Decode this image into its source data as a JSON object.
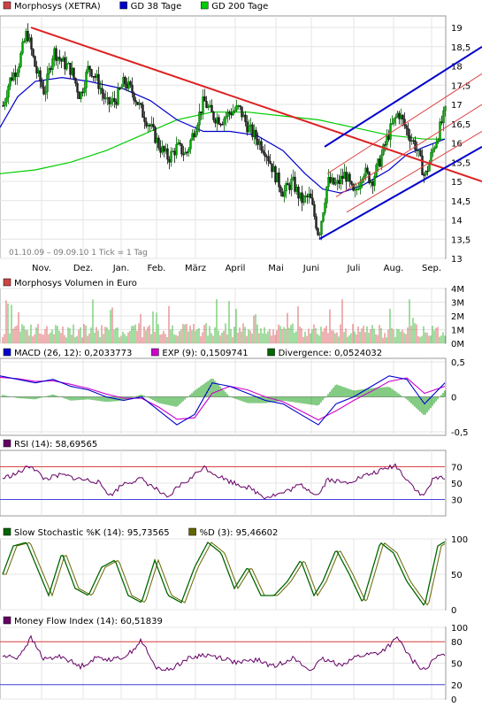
{
  "chart_data": [
    {
      "type": "candlestick",
      "legend": [
        {
          "name": "Morphosys (XETRA)",
          "color": "#cc4444"
        },
        {
          "name": "GD 38 Tage",
          "color": "#0000cc"
        },
        {
          "name": "GD 200 Tage",
          "color": "#00cc00"
        }
      ],
      "range_label": "01.10.09 – 09.09.10   1 Tick = 1 Tag",
      "months": [
        "Nov.",
        "Dez.",
        "Jan.",
        "Feb.",
        "März",
        "April",
        "Mai",
        "Juni",
        "Juli",
        "Aug.",
        "Sep."
      ],
      "yticks": [
        "19",
        "18,5",
        "18",
        "17,5",
        "17",
        "16,5",
        "16",
        "15,5",
        "15",
        "14,5",
        "14",
        "13,5",
        "13"
      ],
      "ylim": [
        13,
        19.3
      ],
      "price_points": [
        [
          0,
          16.7
        ],
        [
          10,
          17.6
        ],
        [
          20,
          18.0
        ],
        [
          30,
          18.9
        ],
        [
          40,
          17.9
        ],
        [
          50,
          17.3
        ],
        [
          60,
          18.4
        ],
        [
          70,
          18.1
        ],
        [
          80,
          17.9
        ],
        [
          90,
          17.2
        ],
        [
          100,
          18.0
        ],
        [
          110,
          17.6
        ],
        [
          120,
          17.0
        ],
        [
          130,
          17.1
        ],
        [
          140,
          17.6
        ],
        [
          150,
          17.3
        ],
        [
          160,
          16.8
        ],
        [
          170,
          16.4
        ],
        [
          180,
          15.9
        ],
        [
          190,
          15.6
        ],
        [
          200,
          15.9
        ],
        [
          210,
          15.7
        ],
        [
          220,
          16.4
        ],
        [
          230,
          17.1
        ],
        [
          240,
          16.7
        ],
        [
          250,
          16.6
        ],
        [
          260,
          16.8
        ],
        [
          270,
          16.9
        ],
        [
          280,
          16.4
        ],
        [
          290,
          16.1
        ],
        [
          300,
          15.8
        ],
        [
          310,
          15.2
        ],
        [
          320,
          14.7
        ],
        [
          330,
          15.0
        ],
        [
          340,
          14.5
        ],
        [
          350,
          14.6
        ],
        [
          360,
          13.6
        ],
        [
          370,
          15.0
        ],
        [
          380,
          14.9
        ],
        [
          390,
          15.2
        ],
        [
          400,
          14.6
        ],
        [
          410,
          15.3
        ],
        [
          420,
          15.0
        ],
        [
          430,
          15.6
        ],
        [
          440,
          16.3
        ],
        [
          450,
          16.8
        ],
        [
          460,
          16.3
        ],
        [
          470,
          15.9
        ],
        [
          480,
          15.1
        ],
        [
          490,
          15.9
        ],
        [
          500,
          16.6
        ],
        [
          503,
          16.8
        ]
      ],
      "ma38_points": [
        [
          0,
          16.4
        ],
        [
          20,
          17.2
        ],
        [
          40,
          17.6
        ],
        [
          70,
          17.7
        ],
        [
          100,
          17.6
        ],
        [
          140,
          17.4
        ],
        [
          170,
          17.1
        ],
        [
          200,
          16.6
        ],
        [
          230,
          16.3
        ],
        [
          260,
          16.3
        ],
        [
          290,
          16.2
        ],
        [
          320,
          15.8
        ],
        [
          345,
          15.2
        ],
        [
          365,
          14.8
        ],
        [
          385,
          14.7
        ],
        [
          410,
          14.9
        ],
        [
          440,
          15.3
        ],
        [
          460,
          15.7
        ],
        [
          480,
          15.9
        ],
        [
          503,
          16.1
        ]
      ],
      "ma200_points": [
        [
          0,
          15.2
        ],
        [
          40,
          15.3
        ],
        [
          80,
          15.5
        ],
        [
          120,
          15.8
        ],
        [
          160,
          16.2
        ],
        [
          200,
          16.6
        ],
        [
          240,
          16.8
        ],
        [
          280,
          16.8
        ],
        [
          320,
          16.7
        ],
        [
          360,
          16.6
        ],
        [
          400,
          16.4
        ],
        [
          440,
          16.2
        ],
        [
          480,
          16.1
        ],
        [
          503,
          16.1
        ]
      ],
      "trendlines": [
        {
          "color": "#dd2222",
          "width": 2,
          "from": [
            35,
            19.0
          ],
          "to": [
            545,
            15.0
          ]
        },
        {
          "color": "#0000cc",
          "width": 2,
          "from": [
            367,
            15.9
          ],
          "to": [
            545,
            18.5
          ]
        },
        {
          "color": "#0000cc",
          "width": 2,
          "from": [
            361,
            13.5
          ],
          "to": [
            545,
            15.9
          ]
        },
        {
          "color": "#dd4444",
          "width": 1,
          "from": [
            370,
            15.2
          ],
          "to": [
            545,
            17.8
          ]
        },
        {
          "color": "#dd4444",
          "width": 1,
          "from": [
            380,
            14.6
          ],
          "to": [
            545,
            17.0
          ]
        },
        {
          "color": "#dd4444",
          "width": 1,
          "from": [
            392,
            14.2
          ],
          "to": [
            545,
            16.3
          ]
        }
      ]
    },
    {
      "type": "bar",
      "legend": [
        {
          "name": "Morphosys Volumen in Euro",
          "color": "#cc4444"
        }
      ],
      "yticks": [
        "4M",
        "3M",
        "2M",
        "1M",
        "0M"
      ],
      "ylim": [
        0,
        4
      ]
    },
    {
      "type": "line",
      "legend": [
        {
          "name": "MACD (26, 12): 0,2033773",
          "color": "#0000cc"
        },
        {
          "name": "EXP (9): 0,1509741",
          "color": "#cc00cc"
        },
        {
          "name": "Divergence: 0,0524032",
          "color": "#006600"
        }
      ],
      "yticks": [
        "0,5",
        "0",
        "-0,5"
      ],
      "ylim": [
        -0.55,
        0.55
      ],
      "macd_points": [
        [
          0,
          0.3
        ],
        [
          20,
          0.25
        ],
        [
          40,
          0.2
        ],
        [
          60,
          0.25
        ],
        [
          80,
          0.15
        ],
        [
          100,
          0.1
        ],
        [
          120,
          0.0
        ],
        [
          140,
          -0.05
        ],
        [
          160,
          0.0
        ],
        [
          180,
          -0.2
        ],
        [
          200,
          -0.4
        ],
        [
          220,
          -0.25
        ],
        [
          240,
          0.2
        ],
        [
          260,
          0.15
        ],
        [
          280,
          0.05
        ],
        [
          300,
          -0.05
        ],
        [
          320,
          -0.1
        ],
        [
          340,
          -0.25
        ],
        [
          360,
          -0.4
        ],
        [
          380,
          -0.1
        ],
        [
          400,
          0.0
        ],
        [
          420,
          0.15
        ],
        [
          440,
          0.3
        ],
        [
          460,
          0.25
        ],
        [
          480,
          -0.1
        ],
        [
          503,
          0.2
        ]
      ],
      "exp_points": [
        [
          0,
          0.28
        ],
        [
          20,
          0.26
        ],
        [
          40,
          0.22
        ],
        [
          60,
          0.23
        ],
        [
          80,
          0.18
        ],
        [
          100,
          0.12
        ],
        [
          120,
          0.04
        ],
        [
          140,
          -0.02
        ],
        [
          160,
          -0.02
        ],
        [
          180,
          -0.15
        ],
        [
          200,
          -0.32
        ],
        [
          220,
          -0.3
        ],
        [
          240,
          0.05
        ],
        [
          260,
          0.15
        ],
        [
          280,
          0.1
        ],
        [
          300,
          0.0
        ],
        [
          320,
          -0.07
        ],
        [
          340,
          -0.2
        ],
        [
          360,
          -0.33
        ],
        [
          380,
          -0.2
        ],
        [
          400,
          -0.05
        ],
        [
          420,
          0.08
        ],
        [
          440,
          0.22
        ],
        [
          460,
          0.27
        ],
        [
          480,
          0.05
        ],
        [
          503,
          0.15
        ]
      ]
    },
    {
      "type": "line",
      "legend": [
        {
          "name": "RSI (14): 58,69565",
          "color": "#660066"
        }
      ],
      "yticks": [
        "70",
        "50",
        "30"
      ],
      "ylim": [
        10,
        90
      ],
      "ref_lines": [
        {
          "value": 70,
          "color": "#dd4444"
        },
        {
          "value": 30,
          "color": "#4444dd"
        }
      ],
      "points": [
        [
          0,
          55
        ],
        [
          20,
          62
        ],
        [
          35,
          72
        ],
        [
          50,
          55
        ],
        [
          70,
          60
        ],
        [
          90,
          55
        ],
        [
          110,
          52
        ],
        [
          125,
          35
        ],
        [
          140,
          50
        ],
        [
          160,
          55
        ],
        [
          180,
          40
        ],
        [
          190,
          30
        ],
        [
          200,
          45
        ],
        [
          215,
          55
        ],
        [
          230,
          70
        ],
        [
          245,
          60
        ],
        [
          260,
          52
        ],
        [
          280,
          45
        ],
        [
          300,
          33
        ],
        [
          320,
          38
        ],
        [
          340,
          48
        ],
        [
          360,
          35
        ],
        [
          370,
          55
        ],
        [
          390,
          50
        ],
        [
          410,
          58
        ],
        [
          430,
          65
        ],
        [
          447,
          72
        ],
        [
          460,
          55
        ],
        [
          478,
          33
        ],
        [
          490,
          55
        ],
        [
          503,
          58
        ]
      ]
    },
    {
      "type": "line",
      "legend": [
        {
          "name": "Slow Stochastic %K (14): 95,73565",
          "color": "#006600"
        },
        {
          "name": "%D (3): 95,46602",
          "color": "#666600"
        }
      ],
      "yticks": [
        "100",
        "50",
        "0"
      ],
      "ylim": [
        0,
        100
      ],
      "k_points": [
        [
          0,
          40
        ],
        [
          15,
          90
        ],
        [
          30,
          95
        ],
        [
          45,
          50
        ],
        [
          55,
          20
        ],
        [
          70,
          80
        ],
        [
          85,
          30
        ],
        [
          100,
          20
        ],
        [
          115,
          60
        ],
        [
          130,
          70
        ],
        [
          145,
          20
        ],
        [
          160,
          10
        ],
        [
          175,
          70
        ],
        [
          190,
          20
        ],
        [
          205,
          10
        ],
        [
          220,
          60
        ],
        [
          235,
          95
        ],
        [
          250,
          80
        ],
        [
          265,
          30
        ],
        [
          280,
          60
        ],
        [
          295,
          20
        ],
        [
          310,
          20
        ],
        [
          325,
          40
        ],
        [
          340,
          70
        ],
        [
          355,
          20
        ],
        [
          365,
          40
        ],
        [
          380,
          85
        ],
        [
          395,
          50
        ],
        [
          410,
          10
        ],
        [
          430,
          95
        ],
        [
          445,
          80
        ],
        [
          460,
          40
        ],
        [
          480,
          5
        ],
        [
          495,
          90
        ],
        [
          503,
          96
        ]
      ]
    },
    {
      "type": "line",
      "legend": [
        {
          "name": "Money Flow Index (14): 60,51839",
          "color": "#660066"
        }
      ],
      "yticks": [
        "100",
        "80",
        "50",
        "20",
        "0"
      ],
      "ylim": [
        0,
        100
      ],
      "ref_lines": [
        {
          "value": 80,
          "color": "#dd4444"
        },
        {
          "value": 20,
          "color": "#4444dd"
        }
      ],
      "points": [
        [
          0,
          60
        ],
        [
          20,
          58
        ],
        [
          35,
          85
        ],
        [
          50,
          55
        ],
        [
          70,
          60
        ],
        [
          90,
          45
        ],
        [
          110,
          58
        ],
        [
          130,
          55
        ],
        [
          145,
          62
        ],
        [
          160,
          82
        ],
        [
          175,
          45
        ],
        [
          190,
          40
        ],
        [
          210,
          55
        ],
        [
          230,
          62
        ],
        [
          250,
          58
        ],
        [
          270,
          50
        ],
        [
          290,
          55
        ],
        [
          310,
          45
        ],
        [
          330,
          58
        ],
        [
          350,
          40
        ],
        [
          365,
          55
        ],
        [
          385,
          48
        ],
        [
          405,
          60
        ],
        [
          430,
          65
        ],
        [
          450,
          85
        ],
        [
          465,
          55
        ],
        [
          480,
          40
        ],
        [
          495,
          60
        ],
        [
          503,
          60
        ]
      ]
    }
  ]
}
